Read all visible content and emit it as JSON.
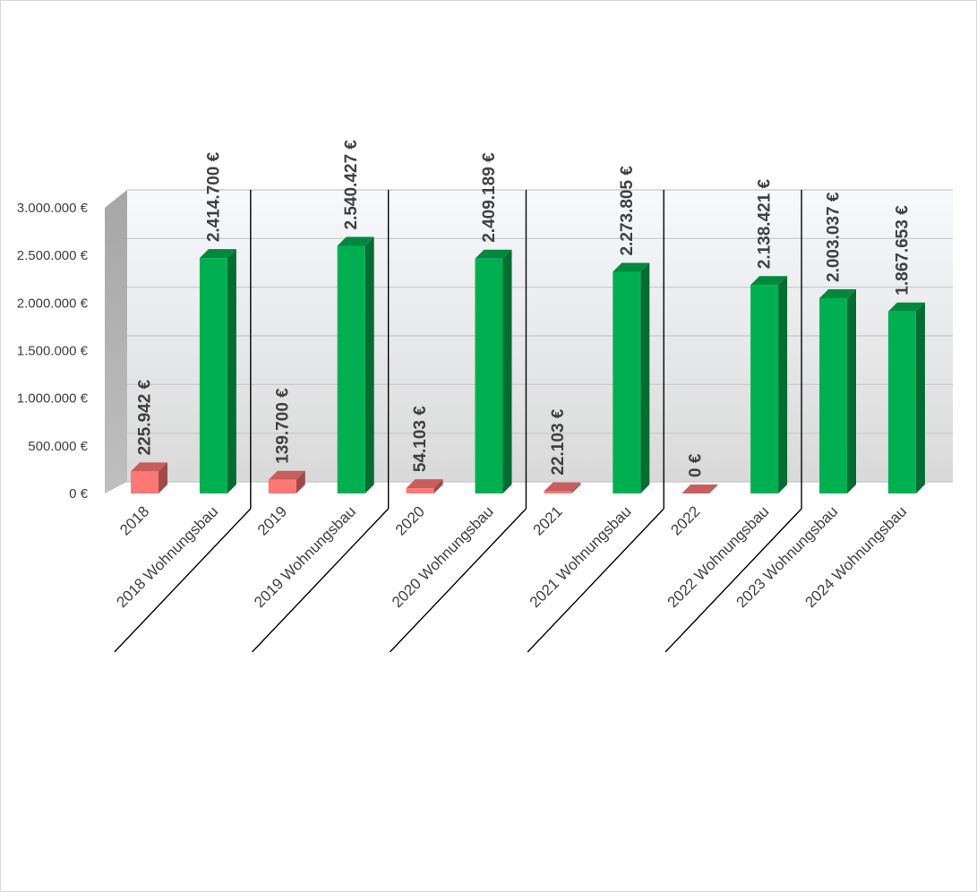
{
  "chart_data": {
    "type": "bar",
    "style": "3d-column",
    "categories": [
      "2018",
      "2018 Wohnungsbau",
      "2019",
      "2019 Wohnungsbau",
      "2020",
      "2020 Wohnungsbau",
      "2021",
      "2021 Wohnungsbau",
      "2022",
      "2022 Wohnungsbau",
      "2023 Wohnungsbau",
      "2024 Wohnungsbau"
    ],
    "values": [
      225942,
      2414700,
      139700,
      2540427,
      54103,
      2409189,
      22103,
      2273805,
      0,
      2138421,
      2003037,
      1867653
    ],
    "data_labels": [
      "225.942 €",
      "2.414.700 €",
      "139.700 €",
      "2.540.427 €",
      "54.103 €",
      "2.409.189 €",
      "22.103 €",
      "2.273.805 €",
      "0 €",
      "2.138.421 €",
      "2.003.037 €",
      "1.867.653 €"
    ],
    "bar_colors": [
      "#ff7777",
      "#00b050",
      "#ff7777",
      "#00b050",
      "#ff7777",
      "#00b050",
      "#ff7777",
      "#00b050",
      "#ff7777",
      "#00b050",
      "#00b050",
      "#00b050"
    ],
    "ylim": [
      0,
      3000000
    ],
    "yticks": [
      0,
      500000,
      1000000,
      1500000,
      2000000,
      2500000,
      3000000
    ],
    "ytick_labels": [
      "0 €",
      "500.000 €",
      "1.000.000 €",
      "1.500.000 €",
      "2.000.000 €",
      "2.500.000 €",
      "3.000.000 €"
    ],
    "year_separators_after_index": [
      1,
      3,
      5,
      7,
      9
    ],
    "grid": true,
    "title": "",
    "xlabel": "",
    "ylabel": ""
  }
}
